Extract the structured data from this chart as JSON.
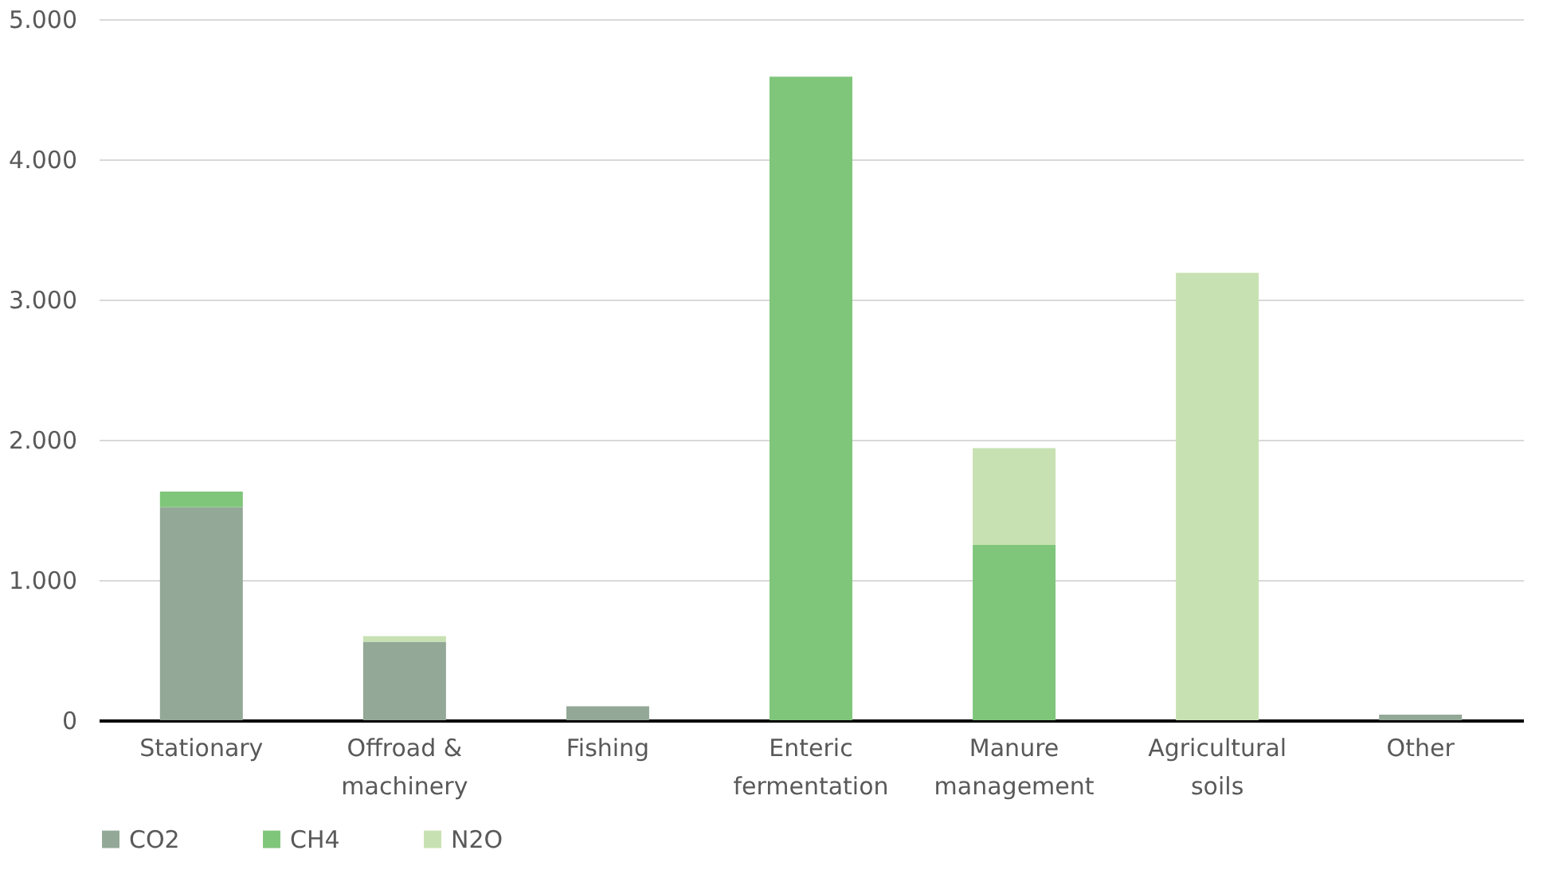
{
  "chart_data": {
    "type": "bar",
    "stacked": true,
    "categories": [
      "Stationary",
      "Offroad & machinery",
      "Fishing",
      "Enteric fermentation",
      "Manure management",
      "Agricultural soils",
      "Other"
    ],
    "series": [
      {
        "name": "CO2",
        "color": "#93a897",
        "values": [
          1520,
          560,
          100,
          null,
          null,
          null,
          40
        ]
      },
      {
        "name": "CH4",
        "color": "#7fc67a",
        "values": [
          110,
          null,
          null,
          4590,
          1250,
          null,
          null
        ]
      },
      {
        "name": "N2O",
        "color": "#c8e1b2",
        "values": [
          null,
          40,
          null,
          null,
          690,
          3190,
          null
        ]
      }
    ],
    "ylim": [
      0,
      5000
    ],
    "yticks": [
      0,
      {
        "value": 1000,
        "label": "1.000"
      },
      {
        "value": 2000,
        "label": "2.000"
      },
      {
        "value": 3000,
        "label": "3.000"
      },
      {
        "value": 4000,
        "label": "4.000"
      },
      {
        "value": 5000,
        "label": "5.000"
      }
    ],
    "grid": "y",
    "legend": "bottom"
  }
}
